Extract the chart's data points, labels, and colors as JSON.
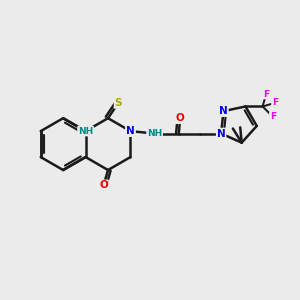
{
  "bg_color": "#ebebeb",
  "bond_color": "#1a1a1a",
  "bond_width": 1.8,
  "atom_colors": {
    "N": "#0000ee",
    "O": "#ee0000",
    "S": "#aaaa00",
    "F": "#ee00ee",
    "NH": "#008888",
    "C": "#1a1a1a"
  },
  "font_size": 7.5,
  "small_font": 6.5
}
